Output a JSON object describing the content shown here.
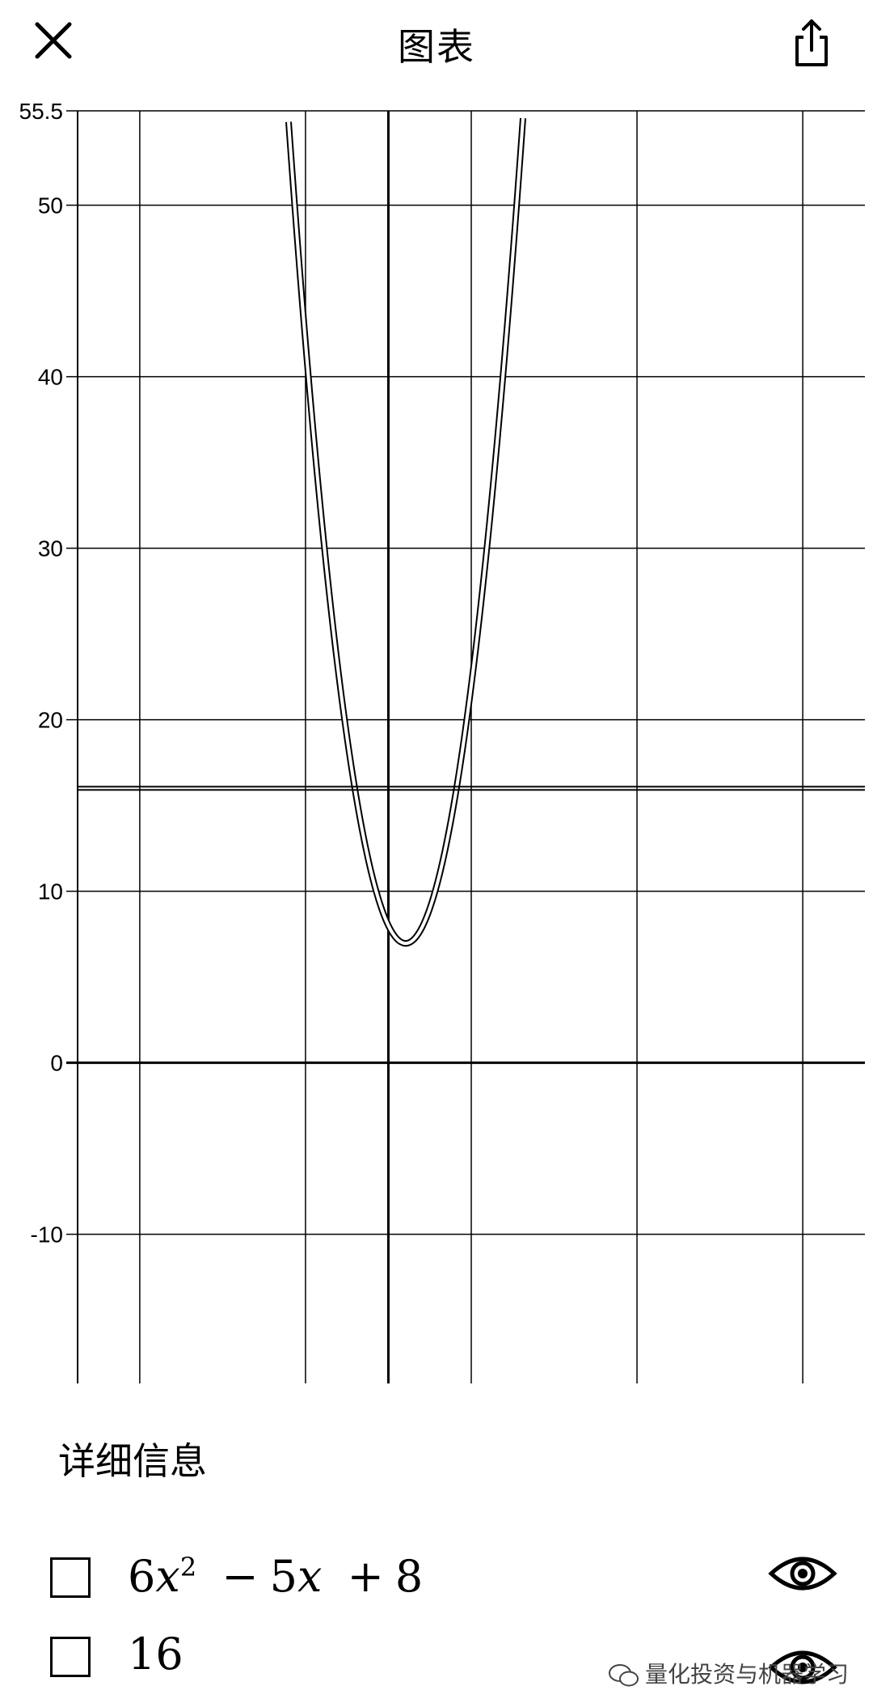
{
  "header": {
    "title": "图表",
    "close_icon": "close-icon",
    "share_icon": "share-icon"
  },
  "chart_data": {
    "type": "line",
    "xlim": [
      -7.5,
      11.5
    ],
    "ylim": [
      -18.7,
      55.5
    ],
    "y_ticks": [
      {
        "value": 55.5,
        "label": "55.5"
      },
      {
        "value": 50,
        "label": "50"
      },
      {
        "value": 40,
        "label": "40"
      },
      {
        "value": 30,
        "label": "30"
      },
      {
        "value": 20,
        "label": "20"
      },
      {
        "value": 10,
        "label": "10"
      },
      {
        "value": 0,
        "label": "0"
      },
      {
        "value": -10,
        "label": "-10"
      }
    ],
    "x_gridlines": [
      -6,
      -2,
      2,
      6,
      10
    ],
    "series": [
      {
        "expression": "6x^2 - 5x + 8",
        "coeffs": [
          6,
          -5,
          8
        ],
        "color": "#000000"
      },
      {
        "expression": "16",
        "coeffs": [
          0,
          0,
          16
        ],
        "color": "#000000"
      }
    ],
    "grid": true
  },
  "details": {
    "title": "详细信息",
    "expressions": [
      {
        "coefficient": "6",
        "variable": "x",
        "exponent": "2",
        "op1": "−",
        "term2": "5",
        "var2": "x",
        "op2": "+",
        "term3": "8",
        "checked": false,
        "visible_icon": "eye-icon"
      },
      {
        "text": "16",
        "checked": false,
        "visible_icon": "eye-icon"
      }
    ]
  },
  "watermark": {
    "text": "量化投资与机器学习"
  }
}
